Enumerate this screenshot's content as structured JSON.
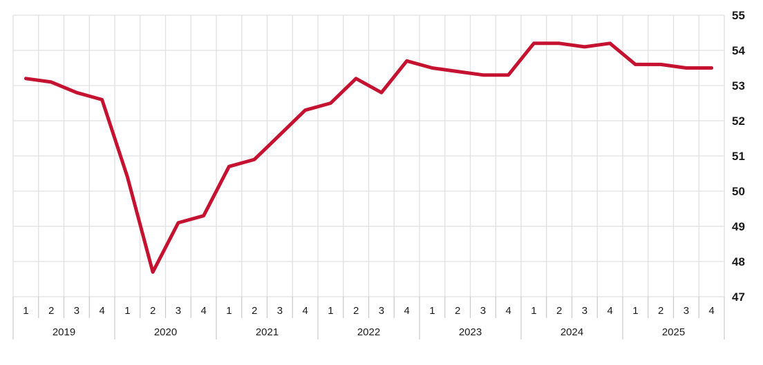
{
  "chart_data": {
    "type": "line",
    "title": "",
    "xlabel": "",
    "ylabel": "",
    "categories": [
      "2019 Q1",
      "2019 Q2",
      "2019 Q3",
      "2019 Q4",
      "2020 Q1",
      "2020 Q2",
      "2020 Q3",
      "2020 Q4",
      "2021 Q1",
      "2021 Q2",
      "2021 Q3",
      "2021 Q4",
      "2022 Q1",
      "2022 Q2",
      "2022 Q3",
      "2022 Q4",
      "2023 Q1",
      "2023 Q2",
      "2023 Q3",
      "2023 Q4",
      "2024 Q1",
      "2024 Q2",
      "2024 Q3",
      "2024 Q4",
      "2025 Q1",
      "2025 Q2",
      "2025 Q3",
      "2025 Q4"
    ],
    "x_axis": {
      "years": [
        "2019",
        "2020",
        "2021",
        "2022",
        "2023",
        "2024",
        "2025"
      ],
      "quarter_labels": [
        "1",
        "2",
        "3",
        "4"
      ]
    },
    "y_axis": {
      "min": 47,
      "max": 55,
      "position": "right",
      "ticks": [
        "55",
        "54",
        "53",
        "52",
        "51",
        "50",
        "49",
        "48",
        "47"
      ]
    },
    "ylim": [
      47,
      55
    ],
    "series": [
      {
        "name": "quarterly-value",
        "color": "#c51230",
        "values": [
          53.2,
          53.1,
          52.8,
          52.6,
          50.4,
          47.7,
          49.1,
          49.3,
          50.7,
          50.9,
          51.6,
          52.3,
          52.5,
          53.2,
          52.8,
          53.7,
          53.5,
          53.4,
          53.3,
          53.3,
          54.2,
          54.2,
          54.1,
          54.2,
          53.6,
          53.6,
          53.5,
          53.5
        ]
      }
    ],
    "layout_hints": {
      "grid": "on",
      "legend": "none",
      "grid_vertical": "every quarter",
      "grid_horizontal": "every integer"
    }
  },
  "colors": {
    "line": "#c51230",
    "grid": "#e0e0e0",
    "axis_separator": "#c8c8c8",
    "text": "#1a1a1a",
    "background": "#ffffff"
  }
}
